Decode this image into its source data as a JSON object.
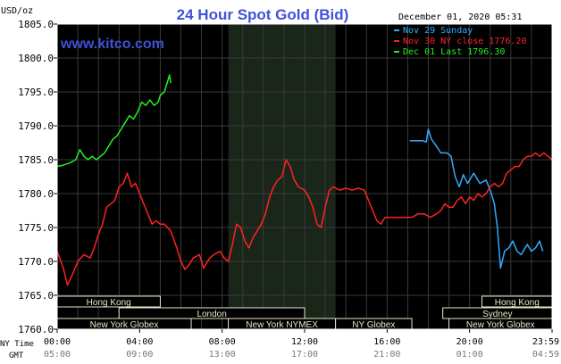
{
  "title": "24 Hour Spot Gold (Bid)",
  "watermark": "www.kitco.com",
  "unit_label": "USD/oz",
  "timestamp": "December 01, 2020 05:31",
  "legend": [
    {
      "text": "Nov 29 Sunday",
      "color": "#33aaff"
    },
    {
      "text": "Nov 30 NY close 1776.20",
      "color": "#ff2222"
    },
    {
      "text": "Dec 01 Last 1796.30",
      "color": "#22ee22"
    }
  ],
  "time_rows": {
    "ny_label": "NY Time",
    "gmt_label": "GMT",
    "ny": [
      "00:00",
      "04:00",
      "08:00",
      "12:00",
      "16:00",
      "20:00",
      "23:59"
    ],
    "gmt": [
      "05:00",
      "09:00",
      "13:00",
      "17:00",
      "21:00",
      "01:00",
      "04:59"
    ]
  },
  "markets": [
    {
      "label": "Hong Kong",
      "start": 0,
      "end": 5.0,
      "row": 0
    },
    {
      "label": "Hong Kong",
      "start": 20.6,
      "end": 24,
      "row": 0
    },
    {
      "label": "London",
      "start": 3.0,
      "end": 12.0,
      "row": 1
    },
    {
      "label": "Sydney",
      "start": 18.7,
      "end": 24,
      "row": 1
    },
    {
      "label": "New York Globex",
      "start": 0,
      "end": 6.5,
      "row": 2
    },
    {
      "label": "New York NYMEX",
      "start": 8.3,
      "end": 13.5,
      "row": 2
    },
    {
      "label": "NY Globex",
      "start": 13.5,
      "end": 17.2,
      "row": 2
    },
    {
      "label": "New York Globex",
      "start": 19.0,
      "end": 24,
      "row": 2
    }
  ],
  "colors": {
    "background": "#000000",
    "frame": "#ffffff",
    "grid": "#3a3a3a",
    "shade": "#1a261a",
    "title": "#3f52d8",
    "market_box": "#e8e8c8"
  },
  "chart_data": {
    "type": "line",
    "xlabel": "NY Time",
    "ylabel": "USD/oz",
    "xlim": [
      0,
      24
    ],
    "ylim": [
      1760,
      1805
    ],
    "yticks": [
      1760.0,
      1765.0,
      1770.0,
      1775.0,
      1780.0,
      1785.0,
      1790.0,
      1795.0,
      1800.0,
      1805.0
    ],
    "shaded_range": [
      8.3,
      13.5
    ],
    "grid": true,
    "legend_position": "top-right",
    "series": [
      {
        "name": "Nov 29 Sunday",
        "color": "#33aaff",
        "points": [
          [
            17.1,
            1787.8
          ],
          [
            17.7,
            1787.8
          ],
          [
            17.9,
            1787.6
          ],
          [
            18.0,
            1789.5
          ],
          [
            18.15,
            1788.0
          ],
          [
            18.35,
            1787.2
          ],
          [
            18.6,
            1786.0
          ],
          [
            18.9,
            1786.0
          ],
          [
            19.1,
            1785.5
          ],
          [
            19.3,
            1782.5
          ],
          [
            19.5,
            1781.0
          ],
          [
            19.7,
            1782.8
          ],
          [
            19.9,
            1781.5
          ],
          [
            20.2,
            1783.0
          ],
          [
            20.5,
            1781.5
          ],
          [
            20.8,
            1782.0
          ],
          [
            21.0,
            1780.5
          ],
          [
            21.2,
            1778.5
          ],
          [
            21.35,
            1775.0
          ],
          [
            21.5,
            1769.0
          ],
          [
            21.7,
            1771.5
          ],
          [
            21.9,
            1772.0
          ],
          [
            22.1,
            1773.0
          ],
          [
            22.3,
            1771.5
          ],
          [
            22.5,
            1771.0
          ],
          [
            22.8,
            1772.5
          ],
          [
            23.0,
            1771.5
          ],
          [
            23.2,
            1772.0
          ],
          [
            23.4,
            1773.0
          ],
          [
            23.55,
            1771.5
          ]
        ]
      },
      {
        "name": "Nov 30 NY close 1776.20",
        "color": "#ff2222",
        "points": [
          [
            0.0,
            1771.5
          ],
          [
            0.3,
            1769.0
          ],
          [
            0.5,
            1766.5
          ],
          [
            0.8,
            1768.5
          ],
          [
            1.0,
            1770.0
          ],
          [
            1.3,
            1771.0
          ],
          [
            1.6,
            1770.5
          ],
          [
            1.8,
            1772.0
          ],
          [
            2.0,
            1774.0
          ],
          [
            2.2,
            1775.5
          ],
          [
            2.4,
            1778.0
          ],
          [
            2.6,
            1778.5
          ],
          [
            2.8,
            1779.0
          ],
          [
            3.0,
            1781.0
          ],
          [
            3.2,
            1781.5
          ],
          [
            3.4,
            1783.0
          ],
          [
            3.6,
            1781.0
          ],
          [
            3.8,
            1781.5
          ],
          [
            4.0,
            1780.0
          ],
          [
            4.2,
            1778.5
          ],
          [
            4.4,
            1777.0
          ],
          [
            4.6,
            1775.5
          ],
          [
            4.8,
            1776.0
          ],
          [
            5.0,
            1775.5
          ],
          [
            5.2,
            1775.5
          ],
          [
            5.5,
            1774.5
          ],
          [
            5.8,
            1772.0
          ],
          [
            6.0,
            1770.0
          ],
          [
            6.2,
            1768.8
          ],
          [
            6.4,
            1769.5
          ],
          [
            6.6,
            1770.5
          ],
          [
            6.9,
            1771.0
          ],
          [
            7.1,
            1769.0
          ],
          [
            7.4,
            1770.5
          ],
          [
            7.6,
            1771.0
          ],
          [
            7.9,
            1771.5
          ],
          [
            8.1,
            1770.5
          ],
          [
            8.3,
            1770.0
          ],
          [
            8.5,
            1772.5
          ],
          [
            8.7,
            1775.5
          ],
          [
            8.9,
            1775.0
          ],
          [
            9.1,
            1773.0
          ],
          [
            9.3,
            1772.0
          ],
          [
            9.5,
            1773.5
          ],
          [
            9.7,
            1774.5
          ],
          [
            9.9,
            1775.5
          ],
          [
            10.1,
            1777.0
          ],
          [
            10.3,
            1779.5
          ],
          [
            10.5,
            1781.0
          ],
          [
            10.7,
            1782.0
          ],
          [
            10.9,
            1782.5
          ],
          [
            11.1,
            1785.0
          ],
          [
            11.3,
            1784.0
          ],
          [
            11.5,
            1782.0
          ],
          [
            11.7,
            1781.0
          ],
          [
            12.0,
            1780.5
          ],
          [
            12.2,
            1779.5
          ],
          [
            12.4,
            1778.0
          ],
          [
            12.6,
            1775.5
          ],
          [
            12.8,
            1775.0
          ],
          [
            13.0,
            1778.0
          ],
          [
            13.2,
            1780.5
          ],
          [
            13.4,
            1781.0
          ],
          [
            13.7,
            1780.5
          ],
          [
            14.0,
            1780.8
          ],
          [
            14.3,
            1780.5
          ],
          [
            14.6,
            1780.8
          ],
          [
            14.9,
            1780.5
          ],
          [
            15.1,
            1779.0
          ],
          [
            15.3,
            1777.5
          ],
          [
            15.5,
            1776.0
          ],
          [
            15.7,
            1775.5
          ],
          [
            15.9,
            1776.5
          ],
          [
            16.1,
            1776.5
          ],
          [
            16.5,
            1776.5
          ],
          [
            16.9,
            1776.5
          ],
          [
            17.2,
            1776.5
          ],
          [
            17.5,
            1777.0
          ],
          [
            17.8,
            1777.0
          ],
          [
            18.1,
            1776.5
          ],
          [
            18.4,
            1777.0
          ],
          [
            18.6,
            1777.5
          ],
          [
            18.8,
            1778.5
          ],
          [
            19.0,
            1778.0
          ],
          [
            19.2,
            1778.0
          ],
          [
            19.4,
            1779.0
          ],
          [
            19.6,
            1779.5
          ],
          [
            19.8,
            1778.5
          ],
          [
            20.0,
            1779.5
          ],
          [
            20.2,
            1779.0
          ],
          [
            20.4,
            1780.0
          ],
          [
            20.6,
            1779.5
          ],
          [
            20.8,
            1780.0
          ],
          [
            21.0,
            1781.0
          ],
          [
            21.2,
            1781.5
          ],
          [
            21.4,
            1781.0
          ],
          [
            21.6,
            1781.5
          ],
          [
            21.8,
            1783.0
          ],
          [
            22.0,
            1783.5
          ],
          [
            22.2,
            1784.0
          ],
          [
            22.4,
            1784.0
          ],
          [
            22.6,
            1785.0
          ],
          [
            22.8,
            1785.5
          ],
          [
            23.0,
            1785.5
          ],
          [
            23.2,
            1786.0
          ],
          [
            23.4,
            1785.5
          ],
          [
            23.6,
            1786.0
          ],
          [
            23.8,
            1785.5
          ],
          [
            24.0,
            1785.0
          ]
        ]
      },
      {
        "name": "Dec 01 Last 1796.30",
        "color": "#22ee22",
        "points": [
          [
            0.0,
            1784.0
          ],
          [
            0.3,
            1784.2
          ],
          [
            0.6,
            1784.5
          ],
          [
            0.9,
            1785.0
          ],
          [
            1.1,
            1786.5
          ],
          [
            1.3,
            1785.5
          ],
          [
            1.5,
            1785.0
          ],
          [
            1.7,
            1785.5
          ],
          [
            1.9,
            1785.0
          ],
          [
            2.1,
            1785.5
          ],
          [
            2.3,
            1786.0
          ],
          [
            2.5,
            1787.0
          ],
          [
            2.7,
            1788.0
          ],
          [
            2.9,
            1788.5
          ],
          [
            3.1,
            1789.5
          ],
          [
            3.3,
            1790.5
          ],
          [
            3.5,
            1791.5
          ],
          [
            3.7,
            1791.0
          ],
          [
            3.9,
            1792.0
          ],
          [
            4.1,
            1793.5
          ],
          [
            4.3,
            1793.0
          ],
          [
            4.5,
            1793.8
          ],
          [
            4.7,
            1793.0
          ],
          [
            4.9,
            1793.5
          ],
          [
            5.0,
            1794.5
          ],
          [
            5.2,
            1795.0
          ],
          [
            5.35,
            1796.5
          ],
          [
            5.45,
            1797.5
          ],
          [
            5.5,
            1796.3
          ]
        ]
      }
    ]
  }
}
